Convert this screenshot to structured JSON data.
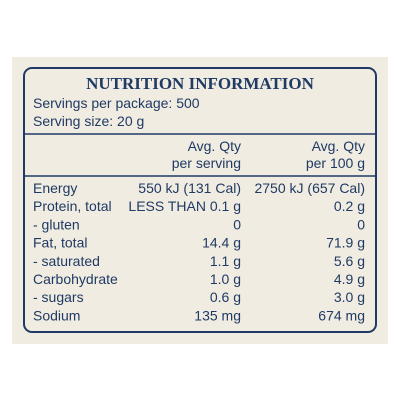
{
  "title": "NUTRITION INFORMATION",
  "servings": [
    "Servings per package: 500",
    "Serving size: 20 g"
  ],
  "table": {
    "header": {
      "per_serving": [
        "Avg. Qty",
        "per serving"
      ],
      "per_100g": [
        "Avg. Qty",
        "per 100 g"
      ]
    },
    "rows": [
      [
        "Energy",
        "550 kJ (131 Cal)",
        "2750 kJ (657 Cal)"
      ],
      [
        "Protein, total",
        "LESS THAN 0.1 g",
        "0.2 g"
      ],
      [
        "- gluten",
        "0",
        "0"
      ],
      [
        "Fat, total",
        "14.4 g",
        "71.9 g"
      ],
      [
        "- saturated",
        "1.1 g",
        "5.6 g"
      ],
      [
        "Carbohydrate",
        "1.0 g",
        "4.9 g"
      ],
      [
        "- sugars",
        "0.6 g",
        "3.0 g"
      ],
      [
        "Sodium",
        "135 mg",
        "674 mg"
      ]
    ]
  }
}
